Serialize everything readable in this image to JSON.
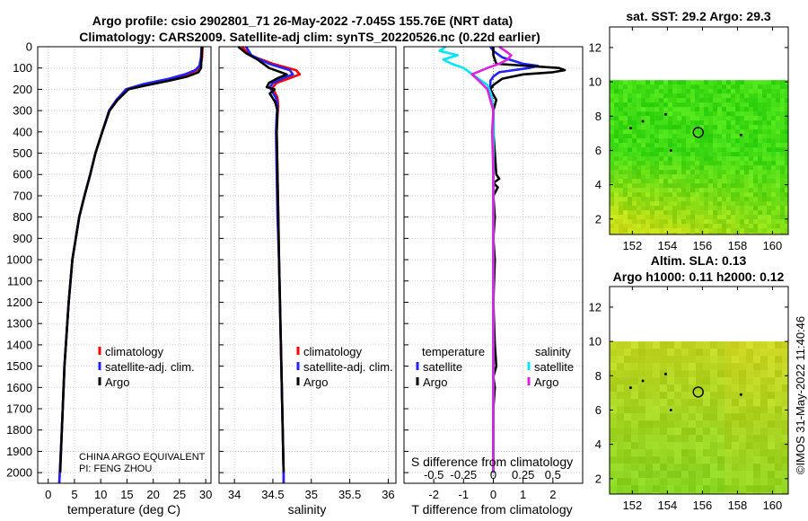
{
  "chart_data": {
    "title": "Argo profile: csio 2902801_71 26-May-2022 -7.045S 155.76E (NRT data)",
    "subtitle": "Climatology: CARS2009. Satellite-adj clim: synTS_20220526.nc (0.22d earlier)",
    "depth_axis": {
      "ylim": [
        0,
        2050
      ],
      "ticks": [
        0,
        100,
        200,
        300,
        400,
        500,
        600,
        700,
        800,
        900,
        1000,
        1100,
        1200,
        1300,
        1400,
        1500,
        1600,
        1700,
        1800,
        1900,
        2000
      ],
      "inverted": true
    },
    "colors": {
      "climatology": "#ff0000",
      "satellite": "#2222ff",
      "argo": "#000000",
      "temp_diff": "#000000",
      "sat_salinity": "#00e5ff",
      "clim_salinity": "#dd22dd"
    },
    "temperature_panel": {
      "type": "line",
      "xlabel": "temperature (deg C)",
      "xlim": [
        -2,
        31
      ],
      "xticks": [
        0,
        5,
        10,
        15,
        20,
        25,
        30
      ],
      "legend": [
        "climatology",
        "satellite-adj. clim.",
        "Argo"
      ],
      "notes": [
        "CHINA ARGO EQUIVALENT",
        "PI: FENG ZHOU"
      ],
      "series": [
        {
          "name": "climatology",
          "depth": [
            0,
            50,
            90,
            110,
            130,
            150,
            175,
            200,
            250,
            300,
            400,
            500,
            600,
            700,
            800,
            1000,
            1200,
            1500,
            1800,
            2000,
            2050
          ],
          "values": [
            29.4,
            29.3,
            29.0,
            28.3,
            26.5,
            23.5,
            18.5,
            15.0,
            13.0,
            11.6,
            10.3,
            9.0,
            8.0,
            6.9,
            5.9,
            4.6,
            3.9,
            3.1,
            2.6,
            2.2,
            2.1
          ]
        },
        {
          "name": "satellite-adj. clim.",
          "depth": [
            0,
            50,
            90,
            110,
            130,
            150,
            175,
            200,
            250,
            300,
            400,
            500,
            600,
            700,
            800,
            1000,
            1200,
            1500,
            1800,
            2000,
            2050
          ],
          "values": [
            29.2,
            29.1,
            28.8,
            28.0,
            26.0,
            23.0,
            18.2,
            14.8,
            13.0,
            11.6,
            10.3,
            9.0,
            8.0,
            6.9,
            5.9,
            4.6,
            3.9,
            3.1,
            2.6,
            2.2,
            2.1
          ]
        },
        {
          "name": "Argo",
          "depth": [
            0,
            50,
            100,
            120,
            140,
            160,
            185,
            200,
            250,
            300,
            400,
            500,
            600,
            700,
            800,
            1000,
            1200,
            1500,
            1800,
            2000
          ],
          "values": [
            29.3,
            29.2,
            29.1,
            28.6,
            26.5,
            23.0,
            18.0,
            15.3,
            13.2,
            11.7,
            10.3,
            9.0,
            8.0,
            6.9,
            5.9,
            4.6,
            3.9,
            3.1,
            2.6,
            2.3
          ]
        }
      ]
    },
    "salinity_panel": {
      "type": "line",
      "xlabel": "salinity",
      "xlim": [
        33.8,
        36.1
      ],
      "xticks": [
        34,
        34.5,
        35,
        35.5,
        36
      ],
      "legend": [
        "climatology",
        "satellite-adj. clim.",
        "Argo"
      ],
      "series": [
        {
          "name": "climatology",
          "depth": [
            0,
            40,
            80,
            110,
            130,
            150,
            170,
            190,
            210,
            240,
            280,
            320,
            400,
            600,
            800,
            1000,
            1500,
            2000,
            2050
          ],
          "values": [
            34.1,
            34.2,
            34.5,
            34.8,
            34.85,
            34.7,
            34.55,
            34.5,
            34.52,
            34.56,
            34.57,
            34.56,
            34.55,
            34.56,
            34.57,
            34.58,
            34.61,
            34.64,
            34.64
          ]
        },
        {
          "name": "satellite-adj. clim.",
          "depth": [
            0,
            40,
            80,
            110,
            130,
            150,
            170,
            190,
            210,
            240,
            280,
            320,
            400,
            600,
            800,
            1000,
            1500,
            2000,
            2050
          ],
          "values": [
            34.15,
            34.22,
            34.45,
            34.72,
            34.76,
            34.62,
            34.5,
            34.46,
            34.49,
            34.54,
            34.56,
            34.55,
            34.54,
            34.55,
            34.56,
            34.58,
            34.61,
            34.64,
            34.64
          ]
        },
        {
          "name": "Argo",
          "depth": [
            0,
            30,
            60,
            100,
            130,
            150,
            170,
            190,
            200,
            220,
            260,
            300,
            400,
            600,
            800,
            1000,
            1500,
            2000
          ],
          "values": [
            34.05,
            34.15,
            34.3,
            34.45,
            34.68,
            34.55,
            34.45,
            34.42,
            34.52,
            34.46,
            34.53,
            34.56,
            34.55,
            34.56,
            34.57,
            34.58,
            34.61,
            34.64
          ]
        }
      ]
    },
    "difference_panel": {
      "type": "line",
      "xlabel": "T difference from climatology",
      "xlim": [
        -3.0,
        3.0
      ],
      "xticks": [
        -2,
        -1,
        0,
        1,
        2
      ],
      "top_axis_label": "S difference from climatology",
      "top_axis_ticks": [
        "-0.5",
        "-0.25",
        "0",
        "0.25",
        "0.5"
      ],
      "legend_left_title": "temperature",
      "legend_left": [
        "satellite",
        "Argo"
      ],
      "legend_right_title": "salinity",
      "legend_right": [
        "satellite",
        "Argo"
      ],
      "series": [
        {
          "name": "temperature satellite",
          "depth": [
            0,
            20,
            50,
            80,
            90,
            100,
            120,
            140,
            160,
            200,
            300,
            500,
            2000
          ],
          "values": [
            -0.1,
            0.0,
            0.3,
            1.0,
            1.5,
            1.2,
            0.2,
            0.0,
            -0.1,
            -0.1,
            0.0,
            0.0,
            0.0
          ]
        },
        {
          "name": "temperature Argo",
          "depth": [
            0,
            40,
            80,
            100,
            110,
            120,
            130,
            150,
            180,
            200,
            250,
            300,
            400,
            500,
            600,
            620,
            640,
            660,
            700,
            800,
            900,
            1000,
            1200,
            1400,
            1500,
            1550,
            1600,
            1700,
            1800,
            2000
          ],
          "values": [
            0.0,
            0.0,
            0.1,
            2.2,
            2.4,
            2.0,
            1.0,
            0.3,
            0.0,
            -0.1,
            0.1,
            0.0,
            0.0,
            0.05,
            0.1,
            0.2,
            0.0,
            0.15,
            0.0,
            0.05,
            0.0,
            0.05,
            0.0,
            0.05,
            0.1,
            0.0,
            0.05,
            0.0,
            0.0,
            0.0
          ]
        },
        {
          "name": "salinity satellite",
          "depth": [
            0,
            20,
            40,
            60,
            80,
            100,
            140,
            180,
            220,
            300,
            500,
            1000,
            2000
          ],
          "values": [
            -0.4,
            -0.45,
            -0.3,
            -0.42,
            -0.35,
            -0.25,
            -0.15,
            -0.05,
            -0.02,
            0.0,
            0.0,
            0.0,
            0.0
          ]
        },
        {
          "name": "salinity Argo",
          "depth": [
            0,
            20,
            40,
            60,
            80,
            100,
            130,
            160,
            200,
            260,
            300,
            400,
            600,
            1000,
            1500,
            2000
          ],
          "values": [
            0.05,
            0.1,
            0.15,
            0.12,
            0.05,
            -0.05,
            -0.18,
            -0.12,
            -0.05,
            -0.02,
            0.0,
            -0.01,
            0.0,
            0.0,
            0.0,
            0.0
          ]
        }
      ]
    },
    "sst_map": {
      "type": "heatmap",
      "title": "sat. SST: 29.2 Argo: 29.3",
      "xticks": [
        152,
        154,
        156,
        158,
        160
      ],
      "yticks": [
        2,
        4,
        6,
        8,
        10,
        12
      ],
      "xlim": [
        150.7,
        160.9
      ],
      "ylim": [
        1.1,
        13.2
      ],
      "data_top_lat": 10.1,
      "float_position": [
        155.76,
        7.05
      ]
    },
    "sla_map": {
      "type": "heatmap",
      "title_line1": "Altim. SLA: 0.13",
      "title_line2": "Argo h1000: 0.11 h2000: 0.12",
      "xticks": [
        152,
        154,
        156,
        158,
        160
      ],
      "yticks": [
        2,
        4,
        6,
        8,
        10,
        12
      ],
      "xlim": [
        150.7,
        160.9
      ],
      "ylim": [
        1.1,
        13.2
      ],
      "data_top_lat": 10.0,
      "float_position": [
        155.76,
        7.05
      ]
    },
    "timestamp": "©IMOS 31-May-2022 11:40:46"
  }
}
